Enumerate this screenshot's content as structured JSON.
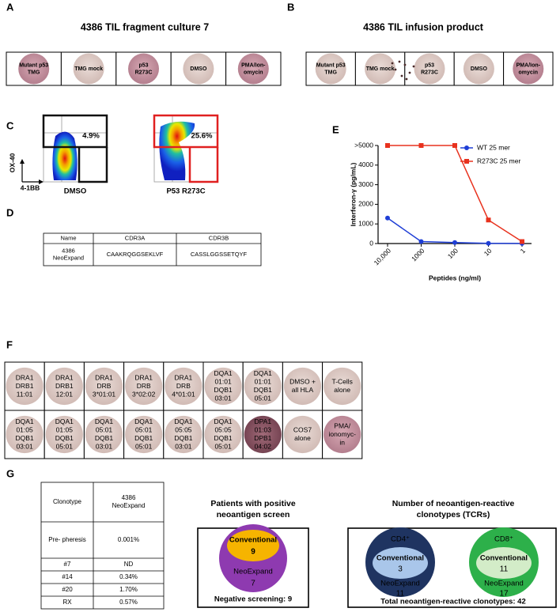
{
  "panel_letters": [
    "A",
    "B",
    "C",
    "D",
    "E",
    "F",
    "G"
  ],
  "panel_a": {
    "title": "4386 TIL fragment culture 7",
    "wells": [
      [
        "Mutant p53",
        "TMG"
      ],
      [
        "TMG mock"
      ],
      [
        "p53",
        "R273C"
      ],
      [
        "DMSO"
      ],
      [
        "PMA/Ion-",
        "omycin"
      ]
    ]
  },
  "panel_b": {
    "title": "4386 TIL infusion product",
    "wells": [
      [
        "Mutant p53",
        "TMG"
      ],
      [
        "TMG mock"
      ],
      [
        "p53",
        "R273C"
      ],
      [
        "DMSO"
      ],
      [
        "PMA/Ion-",
        "omycin"
      ]
    ]
  },
  "panel_c": {
    "y_axis": "OX-40",
    "x_axis": "4-1BB",
    "plots": [
      {
        "label": "DMSO",
        "percent": "4.9%"
      },
      {
        "label": "P53 R273C",
        "percent": "25.6%"
      }
    ]
  },
  "panel_d": {
    "header": [
      "Name",
      "CDR3A",
      "CDR3B"
    ],
    "row_name": [
      "4386",
      "NeoExpand"
    ],
    "row_cells": [
      "CAAKRQGGSEKLVF",
      "CASSLGGSSETQYF"
    ]
  },
  "chart_data": {
    "type": "line",
    "categories": [
      "10,000",
      "1000",
      "100",
      "10",
      "1"
    ],
    "series": [
      {
        "name": "WT 25 mer",
        "color": "#1f3fd6",
        "marker": "circle",
        "values": [
          1300,
          100,
          50,
          10,
          5
        ]
      },
      {
        "name": "R273C 25 mer",
        "color": "#e8321e",
        "marker": "square",
        "values": [
          5000,
          5000,
          5000,
          1200,
          100
        ]
      }
    ],
    "ylim": [
      0,
      5000
    ],
    "yticks": [
      0,
      1000,
      2000,
      3000,
      4000,
      {
        "value": 5000,
        "label": ">5000"
      }
    ],
    "ylabel": "Interferon-γ (pg/mL)",
    "xlabel": "Peptides (ng/ml)",
    "legend": "upper right"
  },
  "panel_f": {
    "wells": [
      [
        [
          "DRA1",
          "DRB1",
          "11:01"
        ],
        [
          "DRA1",
          "DRB1",
          "12:01"
        ],
        [
          "DRA1",
          "DRB",
          "3*01:01"
        ],
        [
          "DRA1",
          "DRB",
          "3*02:02"
        ],
        [
          "DRA1",
          "DRB",
          "4*01:01"
        ],
        [
          "DQA1",
          "01:01",
          "DQB1",
          "03:01"
        ],
        [
          "DQA1",
          "01:01",
          "DQB1",
          "05:01"
        ],
        [
          "DMSO +",
          "all HLA"
        ],
        [
          "T-Cells",
          "alone"
        ]
      ],
      [
        [
          "DQA1",
          "01:05",
          "DQB1",
          "03:01"
        ],
        [
          "DQA1",
          "01:05",
          "DQB1",
          "05:01"
        ],
        [
          "DQA1",
          "05:01",
          "DQB1",
          "03:01"
        ],
        [
          "DQA1",
          "05:01",
          "DQB1",
          "05:01"
        ],
        [
          "DQA1",
          "05:05",
          "DQB1",
          "03:01"
        ],
        [
          "DQA1",
          "05:05",
          "DQB1",
          "05:01"
        ],
        [
          "DPA1",
          "01:03",
          "DPB1",
          "04:02"
        ],
        [
          "COS7",
          "alone"
        ],
        [
          "PMA/",
          "ionomyc-",
          "in"
        ]
      ]
    ]
  },
  "panel_g": {
    "table": [
      [
        [
          "Clonotype"
        ],
        [
          "4386",
          "NeoExpand"
        ]
      ],
      [
        [
          "Pre- pheresis"
        ],
        [
          "0.001%"
        ]
      ],
      [
        [
          "#7"
        ],
        [
          "ND"
        ]
      ],
      [
        [
          "#14"
        ],
        [
          "0.34%"
        ]
      ],
      [
        [
          "#20"
        ],
        [
          "1.70%"
        ]
      ],
      [
        [
          "RX"
        ],
        [
          "0.57%"
        ]
      ]
    ],
    "venn_left": {
      "title": [
        "Patients with positive",
        "neoantigen screen"
      ],
      "inner_label": "Conventional",
      "inner_value": 9,
      "outer_label": "NeoExpand",
      "outer_value": 7,
      "footer": "Negative screening: 9"
    },
    "venn_right": {
      "title": [
        "Number of neoantigen-reactive",
        "clonotypes (TCRs)"
      ],
      "groups": [
        {
          "name": "CD4⁺",
          "inner_label": "Conventional",
          "inner_value": 3,
          "outer_label": "NeoExpand",
          "outer_value": 11
        },
        {
          "name": "CD8⁺",
          "inner_label": "Conventional",
          "inner_value": 11,
          "outer_label": "NeoExpand",
          "outer_value": 17
        }
      ],
      "footer": "Total neoantigen-reactive clonotypes: 42"
    }
  }
}
